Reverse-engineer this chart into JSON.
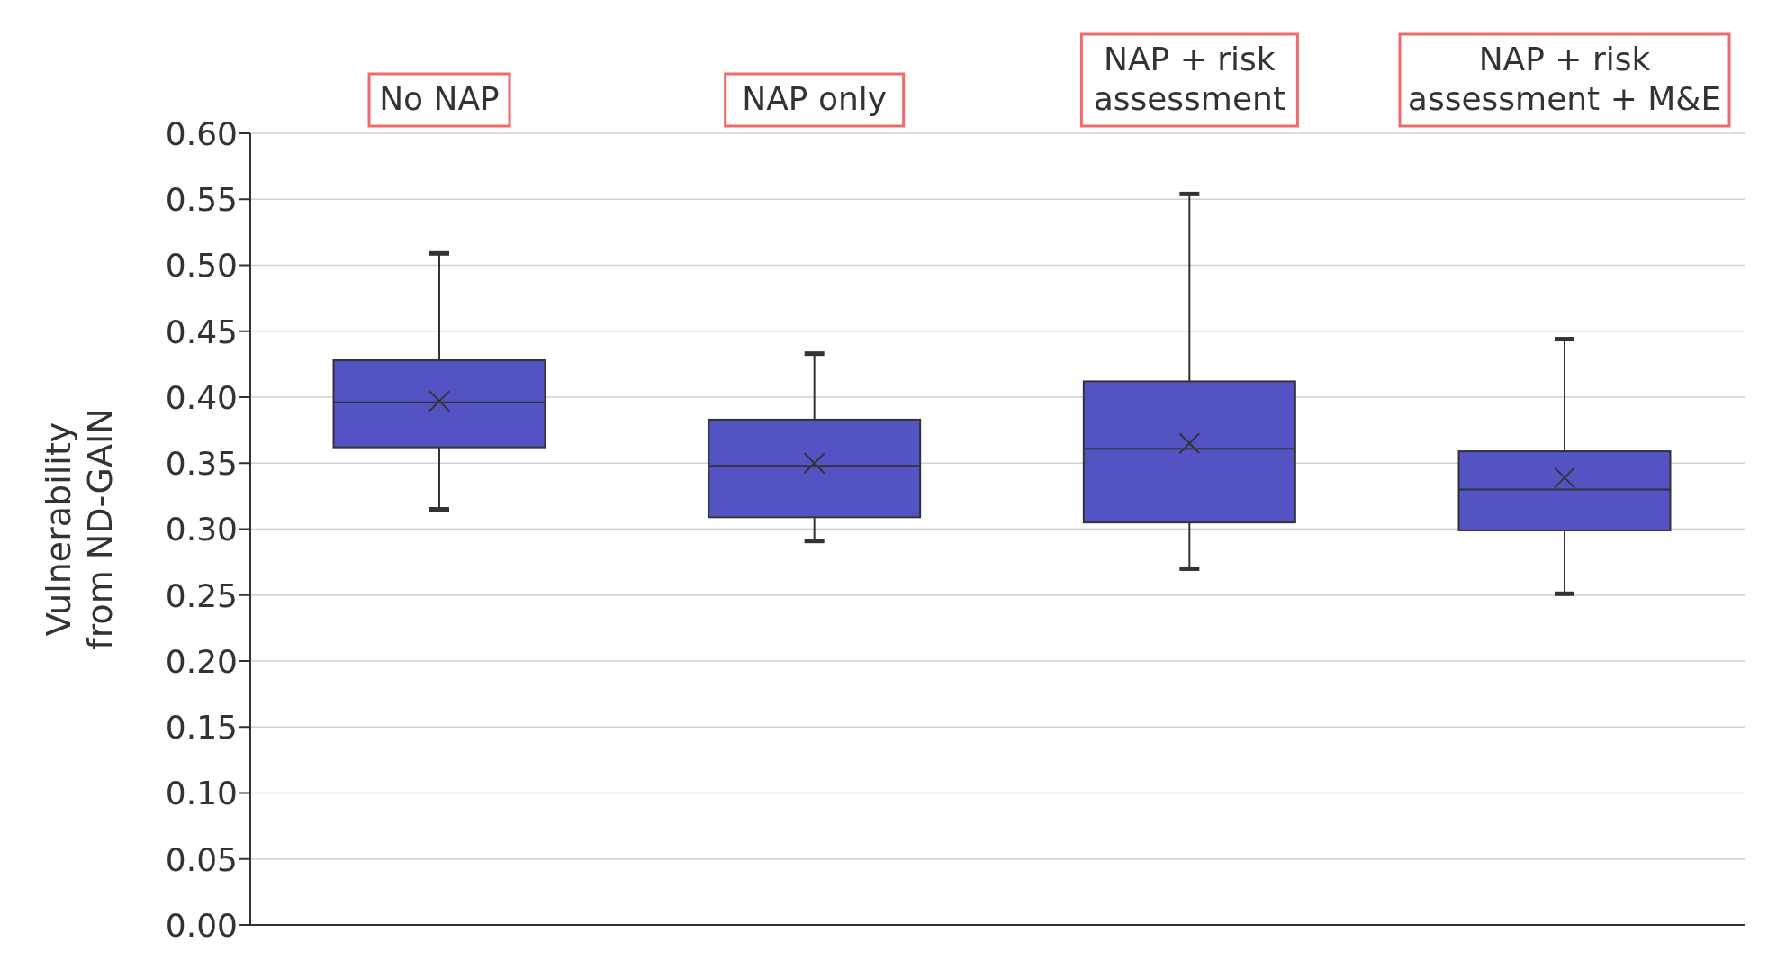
{
  "chart_data": {
    "type": "box",
    "ylabel": "Vulnerability\nfrom ND-GAIN",
    "categories": [
      "No NAP",
      "NAP only",
      "NAP + risk assessment",
      "NAP + risk assessment + M&E"
    ],
    "boxes": [
      {
        "low": 0.315,
        "q1": 0.362,
        "median": 0.396,
        "q3": 0.428,
        "high": 0.509,
        "mean": 0.397
      },
      {
        "low": 0.291,
        "q1": 0.309,
        "median": 0.348,
        "q3": 0.383,
        "high": 0.433,
        "mean": 0.35
      },
      {
        "low": 0.27,
        "q1": 0.305,
        "median": 0.361,
        "q3": 0.412,
        "high": 0.554,
        "mean": 0.365
      },
      {
        "low": 0.251,
        "q1": 0.299,
        "median": 0.33,
        "q3": 0.359,
        "high": 0.444,
        "mean": 0.339
      }
    ],
    "color": "#5353c4",
    "marker": "cross",
    "grid": "y",
    "legend": false,
    "ylim": [
      0,
      0.6
    ],
    "yticks": [
      {
        "value": 0,
        "label": "0.00"
      },
      {
        "value": 0.05,
        "label": "0.05"
      },
      {
        "value": 0.1,
        "label": "0.10"
      },
      {
        "value": 0.15,
        "label": "0.15"
      },
      {
        "value": 0.2,
        "label": "0.20"
      },
      {
        "value": 0.25,
        "label": "0.25"
      },
      {
        "value": 0.3,
        "label": "0.30"
      },
      {
        "value": 0.35,
        "label": "0.35"
      },
      {
        "value": 0.4,
        "label": "0.40"
      },
      {
        "value": 0.45,
        "label": "0.45"
      },
      {
        "value": 0.5,
        "label": "0.50"
      },
      {
        "value": 0.55,
        "label": "0.55"
      },
      {
        "value": 0.6,
        "label": "0.60"
      }
    ]
  }
}
